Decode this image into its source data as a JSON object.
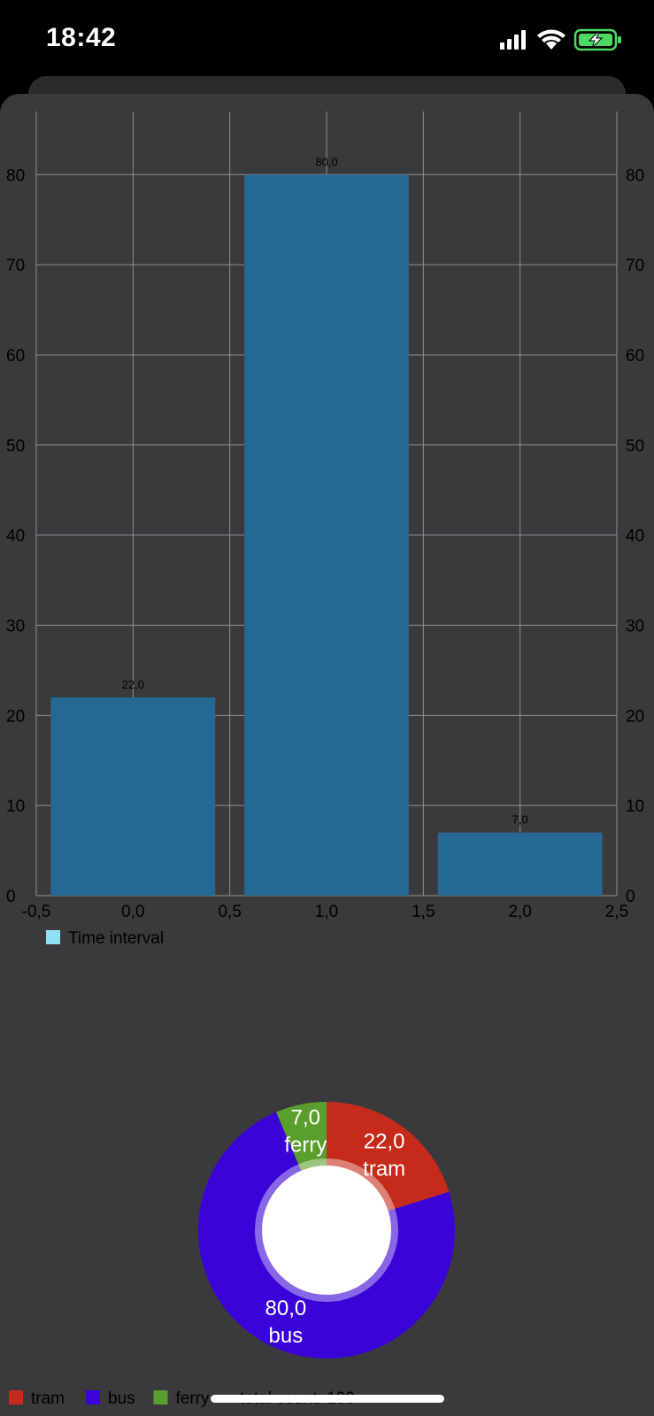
{
  "status_bar": {
    "time": "18:42",
    "icons": [
      "cellular-signal-icon",
      "wifi-icon",
      "battery-charging-icon"
    ],
    "battery_color": "#4cd964"
  },
  "theme": {
    "sheet_bg": "#3a3a3c",
    "grid_color": "#8e8e93",
    "axis_text": "#000000",
    "bar_color": "#256891"
  },
  "chart_data": [
    {
      "type": "bar",
      "x": [
        0,
        1,
        2
      ],
      "values": [
        22,
        80,
        7
      ],
      "value_labels": [
        "22,0",
        "80,0",
        "7,0"
      ],
      "xlim": [
        -0.5,
        2.5
      ],
      "ylim": [
        0,
        87
      ],
      "x_ticks": [
        -0.5,
        0.0,
        0.5,
        1.0,
        1.5,
        2.0,
        2.5
      ],
      "x_tick_labels": [
        "-0,5",
        "0,0",
        "0,5",
        "1,0",
        "1,5",
        "2,0",
        "2,5"
      ],
      "y_ticks": [
        0,
        10,
        20,
        30,
        40,
        50,
        60,
        70,
        80
      ],
      "y_tick_labels": [
        "0",
        "10",
        "20",
        "30",
        "40",
        "50",
        "60",
        "70",
        "80"
      ],
      "right_axis": true,
      "grid": true,
      "legend": {
        "position": "bottom-left",
        "entries": [
          {
            "label": "Time interval",
            "color": "#8fe1f7"
          }
        ]
      }
    },
    {
      "type": "pie",
      "donut": true,
      "slices": [
        {
          "name": "tram",
          "value": 22,
          "value_label": "22,0",
          "color": "#c52a1a"
        },
        {
          "name": "bus",
          "value": 80,
          "value_label": "80,0",
          "color": "#3a03d8"
        },
        {
          "name": "ferry",
          "value": 7,
          "value_label": "7,0",
          "color": "#5a9f2d"
        }
      ],
      "legend": {
        "position": "bottom-left",
        "suffix": "total count: 109"
      }
    }
  ]
}
